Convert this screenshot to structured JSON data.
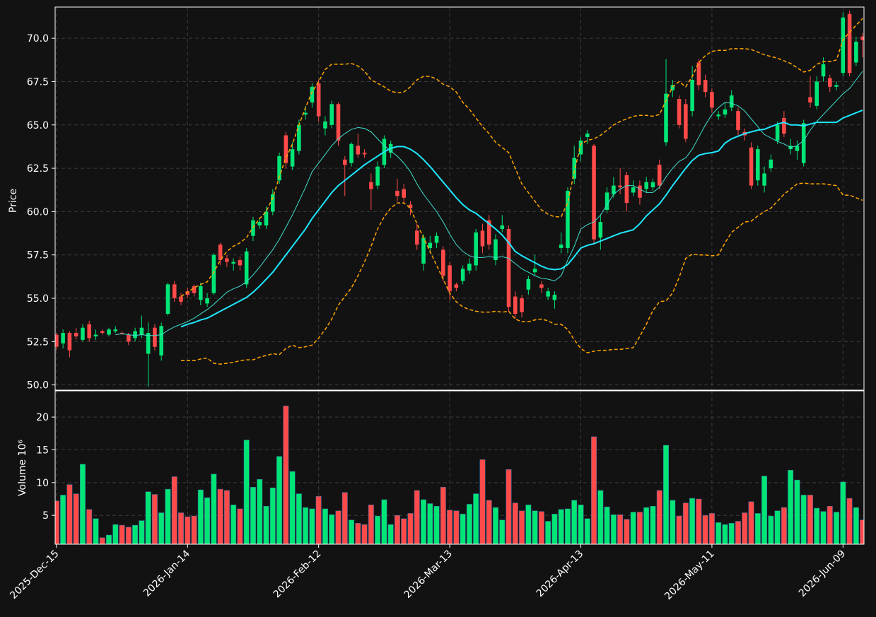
{
  "chart_data": [
    {
      "type": "candlestick",
      "ylabel": "Price",
      "up_color": "#00e676",
      "down_color": "#ff4a4a",
      "grid": true,
      "xlim": [
        -0.2,
        123.2
      ],
      "xticks": [
        {
          "value": 0,
          "label": "2025-Dec-15"
        },
        {
          "value": 20,
          "label": "2026-Jan-14"
        },
        {
          "value": 40,
          "label": "2026-Feb-12"
        },
        {
          "value": 60,
          "label": "2026-Mar-13"
        },
        {
          "value": 80,
          "label": "2026-Apr-13"
        },
        {
          "value": 100,
          "label": "2026-May-11"
        },
        {
          "value": 120,
          "label": "2026-Jun-09"
        }
      ],
      "ylim": [
        49.7,
        71.8
      ],
      "yticks": [
        {
          "value": 50,
          "label": "50.0"
        },
        52.5,
        {
          "value": 55,
          "label": "55.0"
        },
        57.5,
        {
          "value": 60,
          "label": "60.0"
        },
        62.5,
        {
          "value": 65,
          "label": "65.0"
        },
        67.5,
        {
          "value": 70,
          "label": "70.0"
        }
      ],
      "open": [
        52.9,
        52.4,
        53.0,
        53.0,
        52.6,
        53.5,
        52.8,
        53.1,
        52.9,
        53.1,
        53.0,
        52.9,
        52.7,
        52.9,
        51.8,
        53.3,
        51.7,
        54.1,
        55.8,
        55.1,
        55.4,
        55.7,
        54.9,
        54.7,
        55.3,
        58.1,
        57.3,
        57.0,
        57.2,
        55.8,
        58.6,
        59.2,
        59.2,
        60.0,
        61.8,
        64.4,
        62.6,
        63.5,
        65.6,
        66.3,
        67.4,
        64.8,
        65.0,
        66.2,
        63.0,
        62.8,
        63.8,
        63.4,
        61.7,
        61.5,
        62.7,
        63.4,
        61.2,
        61.3,
        60.4,
        58.9,
        57.0,
        57.9,
        58.2,
        57.8,
        56.9,
        55.8,
        56.0,
        56.6,
        56.9,
        58.9,
        59.5,
        57.2,
        59.0,
        59.0,
        55.1,
        55.0,
        55.5,
        56.5,
        55.8,
        55.1,
        54.9,
        57.9,
        57.9,
        61.9,
        63.3,
        64.3,
        63.8,
        58.5,
        60.1,
        61.0,
        61.5,
        62.1,
        61.1,
        61.5,
        61.3,
        61.4,
        62.7,
        64.0,
        67.0,
        66.5,
        66.2,
        65.8,
        68.6,
        67.6,
        66.9,
        65.5,
        65.6,
        66.0,
        65.8,
        64.6,
        63.7,
        61.8,
        61.5,
        62.5,
        64.1,
        65.4,
        63.6,
        63.5,
        62.8,
        66.6,
        66.1,
        67.8,
        67.7,
        67.2,
        68.0,
        71.4,
        68.6,
        70.1
      ],
      "high": [
        53.0,
        53.2,
        53.1,
        53.3,
        53.5,
        53.7,
        53.2,
        53.2,
        53.3,
        53.4,
        53.1,
        53.0,
        53.3,
        54.0,
        53.6,
        53.5,
        53.6,
        55.9,
        56.0,
        55.3,
        55.6,
        55.8,
        55.9,
        55.3,
        57.6,
        58.2,
        57.5,
        57.3,
        57.4,
        57.9,
        59.7,
        59.6,
        60.3,
        61.3,
        63.4,
        64.6,
        64.0,
        65.3,
        66.1,
        67.4,
        67.6,
        65.5,
        66.4,
        66.3,
        63.2,
        64.0,
        64.5,
        63.6,
        62.2,
        62.9,
        64.4,
        64.1,
        61.9,
        61.6,
        60.6,
        59.3,
        58.7,
        58.6,
        58.8,
        58.0,
        57.1,
        55.9,
        56.9,
        57.3,
        59.0,
        59.3,
        59.8,
        58.7,
        59.8,
        59.2,
        55.4,
        55.2,
        56.3,
        57.5,
        56.0,
        55.6,
        55.4,
        58.8,
        61.4,
        63.8,
        64.3,
        64.7,
        63.9,
        59.8,
        61.4,
        62.0,
        62.5,
        62.3,
        61.8,
        61.8,
        62.0,
        61.9,
        63.0,
        68.8,
        67.6,
        66.7,
        66.5,
        68.4,
        68.8,
        67.9,
        67.1,
        65.8,
        66.3,
        67.0,
        66.0,
        64.8,
        64.0,
        63.8,
        62.6,
        63.3,
        65.2,
        65.8,
        64.2,
        64.1,
        65.3,
        67.8,
        67.8,
        68.9,
        67.9,
        67.5,
        71.5,
        71.6,
        70.1,
        70.3
      ],
      "low": [
        52.0,
        52.1,
        51.6,
        52.6,
        52.5,
        52.5,
        52.6,
        52.9,
        52.8,
        53.0,
        52.9,
        52.3,
        52.5,
        52.7,
        49.9,
        52.0,
        51.4,
        54.0,
        54.8,
        54.6,
        55.0,
        55.1,
        54.6,
        54.5,
        55.2,
        56.9,
        56.8,
        56.6,
        56.6,
        55.6,
        58.3,
        59.0,
        59.0,
        59.8,
        61.6,
        62.5,
        62.4,
        63.3,
        65.3,
        66.0,
        65.2,
        64.4,
        64.8,
        63.8,
        60.9,
        62.6,
        63.1,
        63.1,
        60.1,
        61.3,
        62.5,
        63.1,
        60.6,
        60.5,
        59.8,
        57.8,
        56.6,
        57.6,
        57.9,
        56.0,
        54.9,
        55.4,
        55.8,
        56.4,
        56.6,
        57.6,
        57.8,
        56.9,
        58.8,
        54.2,
        53.8,
        53.9,
        55.2,
        56.3,
        55.3,
        54.9,
        54.4,
        57.6,
        57.6,
        61.6,
        62.9,
        63.9,
        58.1,
        57.8,
        59.9,
        60.8,
        61.0,
        60.0,
        60.9,
        60.4,
        61.1,
        61.2,
        61.3,
        63.8,
        66.6,
        64.8,
        64.0,
        65.5,
        67.0,
        66.6,
        65.7,
        65.3,
        65.4,
        65.8,
        64.4,
        64.1,
        61.3,
        61.5,
        61.1,
        62.3,
        63.9,
        64.3,
        63.3,
        63.0,
        62.6,
        66.0,
        65.9,
        67.5,
        66.9,
        67.0,
        67.8,
        67.8,
        68.4,
        68.9
      ],
      "close": [
        52.2,
        53.0,
        52.0,
        52.8,
        53.3,
        52.7,
        52.9,
        53.0,
        53.2,
        53.2,
        52.95,
        52.5,
        53.1,
        53.3,
        53.0,
        52.2,
        53.4,
        55.8,
        55.0,
        54.8,
        55.2,
        55.3,
        55.7,
        55.0,
        57.5,
        57.2,
        57.1,
        57.1,
        56.9,
        57.7,
        59.5,
        59.4,
        60.0,
        61.0,
        63.2,
        62.8,
        63.6,
        65.0,
        65.7,
        67.2,
        65.5,
        65.2,
        66.2,
        64.1,
        62.7,
        63.9,
        63.3,
        63.3,
        61.3,
        62.6,
        64.2,
        63.9,
        60.9,
        60.8,
        60.2,
        58.1,
        58.5,
        58.2,
        58.6,
        56.3,
        55.4,
        55.6,
        56.7,
        57.0,
        58.8,
        58.0,
        58.1,
        58.4,
        59.2,
        54.5,
        54.1,
        54.2,
        56.1,
        56.7,
        55.6,
        55.4,
        55.2,
        58.1,
        61.2,
        63.1,
        64.1,
        64.5,
        58.4,
        59.4,
        61.1,
        61.5,
        61.4,
        60.5,
        61.4,
        60.8,
        61.7,
        61.7,
        61.5,
        66.8,
        67.3,
        65.0,
        64.2,
        67.6,
        67.3,
        66.9,
        66.0,
        65.6,
        65.9,
        66.7,
        64.7,
        64.4,
        61.5,
        63.6,
        62.2,
        63.0,
        65.0,
        64.5,
        63.8,
        63.8,
        65.1,
        66.3,
        67.5,
        68.5,
        67.2,
        67.3,
        71.2,
        68.0,
        69.8,
        69.9
      ],
      "lines": [
        {
          "color": "#40e0d0",
          "linewidth": 1,
          "dashed": false,
          "values": [
            null,
            null,
            null,
            null,
            null,
            null,
            null,
            null,
            null,
            52.9,
            52.95,
            52.9,
            52.85,
            52.9,
            52.85,
            52.85,
            52.9,
            53.15,
            53.35,
            53.5,
            53.65,
            53.85,
            54.1,
            54.35,
            54.65,
            55.0,
            55.35,
            55.55,
            55.7,
            55.95,
            56.35,
            56.8,
            57.3,
            57.8,
            58.4,
            59.1,
            59.8,
            60.6,
            61.4,
            62.3,
            62.8,
            63.3,
            63.8,
            64.2,
            64.5,
            64.75,
            64.85,
            64.8,
            64.6,
            64.2,
            63.8,
            63.5,
            63.2,
            62.8,
            62.3,
            61.6,
            61.0,
            60.5,
            60.0,
            59.4,
            58.7,
            58.1,
            57.7,
            57.45,
            57.35,
            57.35,
            57.4,
            57.35,
            57.4,
            57.3,
            57.0,
            56.7,
            56.5,
            56.3,
            56.15,
            56.1,
            56.0,
            56.3,
            57.2,
            58.0,
            59.0,
            59.25,
            59.4,
            59.8,
            60.4,
            61.0,
            61.3,
            61.5,
            61.5,
            61.3,
            61.1,
            61.1,
            61.4,
            62.0,
            62.5,
            62.9,
            63.1,
            63.6,
            64.3,
            65.0,
            65.6,
            66.0,
            66.3,
            66.25,
            66.1,
            65.8,
            65.35,
            64.9,
            64.45,
            64.25,
            64.05,
            63.9,
            63.7,
            63.8,
            64.1,
            64.7,
            65.2,
            65.6,
            66.0,
            66.4,
            66.8,
            67.1,
            67.6,
            68.1
          ]
        },
        {
          "color": "#1ee8ff",
          "linewidth": 2,
          "dashed": false,
          "values": [
            null,
            null,
            null,
            null,
            null,
            null,
            null,
            null,
            null,
            null,
            null,
            null,
            null,
            null,
            null,
            null,
            null,
            null,
            null,
            53.35,
            53.5,
            53.6,
            53.75,
            53.85,
            54.05,
            54.25,
            54.45,
            54.65,
            54.85,
            55.05,
            55.35,
            55.7,
            56.1,
            56.5,
            57.0,
            57.5,
            58.0,
            58.5,
            59.0,
            59.6,
            60.1,
            60.6,
            61.1,
            61.5,
            61.8,
            62.1,
            62.4,
            62.7,
            62.95,
            63.2,
            63.45,
            63.65,
            63.75,
            63.75,
            63.6,
            63.35,
            63.0,
            62.6,
            62.15,
            61.7,
            61.25,
            60.8,
            60.4,
            60.1,
            59.9,
            59.6,
            59.3,
            59.0,
            58.65,
            58.2,
            57.7,
            57.45,
            57.25,
            57.05,
            56.85,
            56.7,
            56.65,
            56.7,
            56.95,
            57.4,
            57.9,
            58.05,
            58.15,
            58.3,
            58.45,
            58.6,
            58.75,
            58.85,
            58.95,
            59.3,
            59.75,
            60.1,
            60.45,
            60.95,
            61.5,
            62.0,
            62.5,
            62.95,
            63.25,
            63.35,
            63.4,
            63.5,
            63.95,
            64.2,
            64.35,
            64.5,
            64.6,
            64.7,
            64.75,
            64.9,
            65.05,
            65.15,
            65.0,
            65.0,
            64.95,
            65.05,
            65.15,
            65.15,
            65.15,
            65.15,
            65.4,
            65.55,
            65.7,
            65.85
          ]
        },
        {
          "color": "#ffa500",
          "linewidth": 1.5,
          "dashed": true,
          "values": [
            null,
            null,
            null,
            null,
            null,
            null,
            null,
            null,
            null,
            null,
            null,
            null,
            null,
            null,
            null,
            null,
            null,
            null,
            null,
            55.1,
            55.35,
            55.6,
            55.8,
            55.95,
            56.5,
            57.2,
            57.7,
            58.0,
            58.2,
            58.5,
            59.1,
            59.6,
            60.0,
            60.8,
            62.0,
            63.1,
            63.9,
            65.0,
            66.0,
            66.9,
            67.5,
            68.2,
            68.5,
            68.5,
            68.5,
            68.55,
            68.4,
            68.1,
            67.6,
            67.4,
            67.2,
            66.95,
            66.85,
            66.9,
            67.2,
            67.6,
            67.8,
            67.8,
            67.65,
            67.35,
            67.2,
            66.9,
            66.3,
            65.9,
            65.4,
            64.9,
            64.5,
            64.0,
            63.7,
            63.4,
            62.5,
            61.6,
            61.1,
            60.6,
            60.1,
            59.85,
            59.7,
            59.7,
            60.5,
            62.3,
            63.9,
            64.1,
            64.2,
            64.4,
            64.7,
            65.0,
            65.2,
            65.35,
            65.5,
            65.55,
            65.55,
            65.5,
            65.6,
            66.4,
            67.2,
            67.5,
            67.2,
            67.8,
            68.6,
            69.0,
            69.25,
            69.3,
            69.3,
            69.4,
            69.4,
            69.4,
            69.35,
            69.2,
            69.05,
            68.95,
            68.85,
            68.7,
            68.55,
            68.3,
            68.05,
            68.15,
            68.5,
            68.65,
            68.65,
            68.75,
            69.9,
            70.35,
            70.75,
            71.15
          ]
        },
        {
          "color": "#ffa500",
          "linewidth": 1.5,
          "dashed": true,
          "values": [
            null,
            null,
            null,
            null,
            null,
            null,
            null,
            null,
            null,
            null,
            null,
            null,
            null,
            null,
            null,
            null,
            null,
            null,
            null,
            51.4,
            51.4,
            51.4,
            51.5,
            51.55,
            51.25,
            51.2,
            51.25,
            51.3,
            51.4,
            51.45,
            51.45,
            51.6,
            51.7,
            51.8,
            51.75,
            52.1,
            52.3,
            52.15,
            52.2,
            52.3,
            52.7,
            53.2,
            53.8,
            54.6,
            55.1,
            55.6,
            56.3,
            57.1,
            58.0,
            59.0,
            59.7,
            60.2,
            60.5,
            60.5,
            60.2,
            59.3,
            58.5,
            57.7,
            56.9,
            56.1,
            55.3,
            54.8,
            54.5,
            54.35,
            54.25,
            54.2,
            54.2,
            54.25,
            54.2,
            54.25,
            53.8,
            53.65,
            53.65,
            53.75,
            53.8,
            53.7,
            53.5,
            53.5,
            53.2,
            52.6,
            52.1,
            51.85,
            51.95,
            52.0,
            52.0,
            52.05,
            52.05,
            52.1,
            52.15,
            52.8,
            53.5,
            54.3,
            54.8,
            54.85,
            55.3,
            56.2,
            57.3,
            57.55,
            57.5,
            57.5,
            57.45,
            57.5,
            58.2,
            58.8,
            59.1,
            59.4,
            59.45,
            59.75,
            60.0,
            60.2,
            60.6,
            61.0,
            61.3,
            61.6,
            61.65,
            61.6,
            61.6,
            61.6,
            61.55,
            61.5,
            60.95,
            60.95,
            60.8,
            60.65
          ]
        }
      ]
    },
    {
      "type": "bar",
      "ylabel": "Volume  10⁶",
      "grid": true,
      "ylim": [
        0.6,
        24.0
      ],
      "yticks": [
        5,
        10,
        15,
        20
      ],
      "values": [
        7.2,
        8.1,
        9.7,
        8.3,
        12.8,
        5.9,
        4.5,
        1.6,
        2.0,
        3.6,
        3.5,
        3.2,
        3.5,
        4.2,
        8.6,
        8.2,
        5.4,
        9.0,
        10.9,
        5.4,
        4.8,
        4.9,
        8.9,
        7.7,
        11.3,
        9.0,
        8.8,
        6.6,
        6.0,
        16.5,
        9.3,
        10.5,
        6.4,
        9.2,
        14.0,
        21.7,
        11.7,
        8.3,
        6.2,
        6.0,
        7.9,
        6.0,
        5.1,
        5.7,
        8.5,
        4.3,
        3.8,
        3.6,
        6.6,
        4.9,
        7.4,
        3.6,
        5.0,
        4.5,
        5.3,
        8.8,
        7.4,
        6.8,
        6.4,
        9.3,
        5.8,
        5.7,
        5.2,
        6.7,
        8.3,
        13.5,
        7.3,
        6.2,
        4.3,
        12.0,
        6.9,
        5.7,
        6.6,
        5.7,
        5.6,
        4.1,
        5.2,
        5.9,
        6.0,
        7.3,
        6.6,
        4.5,
        17.0,
        8.8,
        6.3,
        5.1,
        5.1,
        4.4,
        5.5,
        5.5,
        6.2,
        6.4,
        8.8,
        15.7,
        7.3,
        4.9,
        6.9,
        7.6,
        7.5,
        5.0,
        5.3,
        3.9,
        3.6,
        3.8,
        4.1,
        5.4,
        7.1,
        5.3,
        11.0,
        4.9,
        5.7,
        6.2,
        11.9,
        10.4,
        8.1,
        8.1,
        6.1,
        5.6,
        6.4,
        5.5,
        10.1,
        7.6,
        6.2,
        4.3
      ]
    }
  ]
}
